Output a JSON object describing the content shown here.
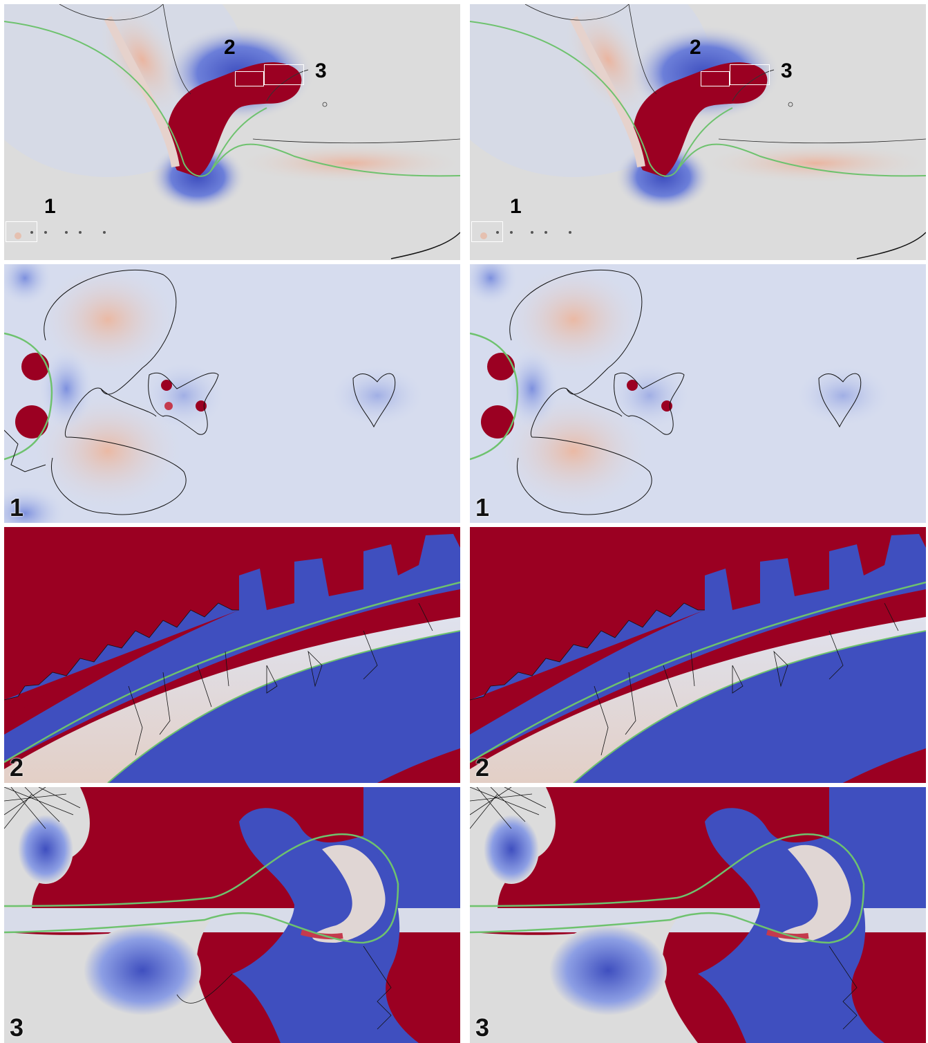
{
  "figure": {
    "overview_labels": [
      "1",
      "2",
      "3"
    ],
    "zoom_labels": {
      "zoom1": "1",
      "zoom2": "2",
      "zoom3": "3"
    },
    "colors": {
      "positive": "#9b0022",
      "negative": "#3f4fbf",
      "neutral": "#dcdcdc",
      "interface": "#6ec26e",
      "contour": "#000000",
      "zoom_box": "#ffffff"
    }
  }
}
